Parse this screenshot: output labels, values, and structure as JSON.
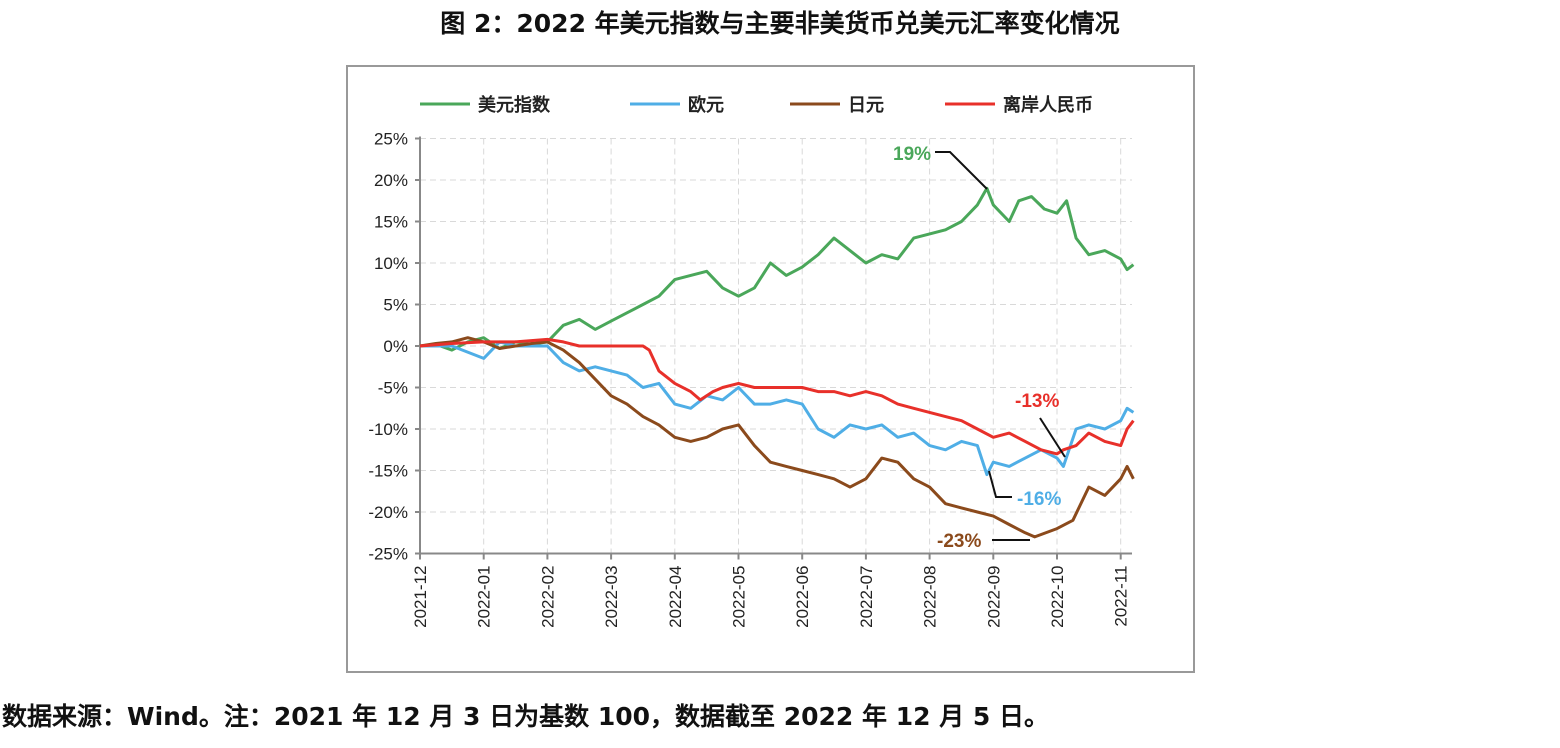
{
  "title": "图 2：2022 年美元指数与主要非美货币兑美元汇率变化情况",
  "note": "数据来源：Wind。注：2021 年 12 月 3 日为基数 100，数据截至 2022 年 12 月 5 日。",
  "chart_data": {
    "type": "line",
    "title": "图 2：2022 年美元指数与主要非美货币兑美元汇率变化情况",
    "xlabel": "",
    "ylabel": "",
    "ylim": [
      -25,
      25
    ],
    "yticks": [
      25,
      20,
      15,
      10,
      5,
      0,
      -5,
      -10,
      -15,
      -20,
      -25
    ],
    "ytick_labels": [
      "25%",
      "20%",
      "15%",
      "10%",
      "5%",
      "0%",
      "-5%",
      "-10%",
      "-15%",
      "-20%",
      "-25%"
    ],
    "xtick_labels": [
      "2021-12",
      "2022-01",
      "2022-02",
      "2022-03",
      "2022-04",
      "2022-05",
      "2022-06",
      "2022-07",
      "2022-08",
      "2022-09",
      "2022-10",
      "2022-11"
    ],
    "x_unit": "months since 2021-12",
    "grid": true,
    "legend": "top",
    "series": [
      {
        "name": "美元指数",
        "color": "#4aa75a",
        "x": [
          0,
          0.25,
          0.5,
          0.75,
          1,
          1.25,
          1.5,
          1.75,
          2,
          2.25,
          2.5,
          2.75,
          3,
          3.25,
          3.5,
          3.75,
          4,
          4.25,
          4.5,
          4.75,
          5,
          5.25,
          5.5,
          5.75,
          6,
          6.25,
          6.5,
          6.75,
          7,
          7.25,
          7.5,
          7.75,
          8,
          8.25,
          8.5,
          8.75,
          8.9,
          9,
          9.25,
          9.4,
          9.6,
          9.8,
          10,
          10.15,
          10.3,
          10.5,
          10.75,
          11,
          11.1,
          11.2
        ],
        "y": [
          0,
          0.2,
          -0.5,
          0.5,
          1,
          -0.3,
          0.5,
          0.2,
          0.5,
          2.5,
          3.2,
          2,
          3,
          4,
          5,
          6,
          8,
          8.5,
          9,
          7,
          6,
          7,
          10,
          8.5,
          9.5,
          11,
          13,
          11.5,
          10,
          11,
          10.5,
          13,
          13.5,
          14,
          15,
          17,
          19,
          17,
          15,
          17.5,
          18,
          16.5,
          16,
          17.5,
          13,
          11,
          11.5,
          10.5,
          9.2,
          9.8
        ]
      },
      {
        "name": "欧元",
        "color": "#4faee6",
        "x": [
          0,
          0.5,
          1,
          1.25,
          1.5,
          2,
          2.25,
          2.5,
          2.75,
          3,
          3.25,
          3.5,
          3.75,
          4,
          4.25,
          4.5,
          4.75,
          5,
          5.25,
          5.5,
          5.75,
          6,
          6.25,
          6.5,
          6.75,
          7,
          7.25,
          7.5,
          7.75,
          8,
          8.25,
          8.5,
          8.75,
          8.9,
          9,
          9.25,
          9.5,
          9.75,
          10,
          10.1,
          10.3,
          10.5,
          10.75,
          11,
          11.1,
          11.2
        ],
        "y": [
          0,
          0,
          -1.5,
          0.5,
          0,
          0,
          -2,
          -3,
          -2.5,
          -3,
          -3.5,
          -5,
          -4.5,
          -7,
          -7.5,
          -6,
          -6.5,
          -5,
          -7,
          -7,
          -6.5,
          -7,
          -10,
          -11,
          -9.5,
          -10,
          -9.5,
          -11,
          -10.5,
          -12,
          -12.5,
          -11.5,
          -12,
          -15.5,
          -14,
          -14.5,
          -13.5,
          -12.5,
          -13.5,
          -14.5,
          -10,
          -9.5,
          -10,
          -9,
          -7.5,
          -8
        ]
      },
      {
        "name": "日元",
        "color": "#8b4a1c",
        "x": [
          0,
          0.25,
          0.5,
          0.75,
          1,
          1.25,
          1.5,
          1.75,
          2,
          2.25,
          2.5,
          2.75,
          3,
          3.25,
          3.5,
          3.75,
          4,
          4.25,
          4.5,
          4.75,
          5,
          5.25,
          5.5,
          5.75,
          6,
          6.25,
          6.5,
          6.75,
          7,
          7.25,
          7.5,
          7.75,
          8,
          8.25,
          8.5,
          8.75,
          9,
          9.25,
          9.5,
          9.65,
          10,
          10.25,
          10.5,
          10.75,
          11,
          11.1,
          11.2
        ],
        "y": [
          0,
          0.3,
          0.5,
          1,
          0.5,
          -0.3,
          0,
          0.3,
          0.5,
          -0.5,
          -2,
          -4,
          -6,
          -7,
          -8.5,
          -9.5,
          -11,
          -11.5,
          -11,
          -10,
          -9.5,
          -12,
          -14,
          -14.5,
          -15,
          -15.5,
          -16,
          -17,
          -16,
          -13.5,
          -14,
          -16,
          -17,
          -19,
          -19.5,
          -20,
          -20.5,
          -21.5,
          -22.5,
          -23,
          -22,
          -21,
          -17,
          -18,
          -16,
          -14.5,
          -16
        ]
      },
      {
        "name": "离岸人民币",
        "color": "#e8302a",
        "x": [
          0,
          0.5,
          1,
          1.5,
          2,
          2.25,
          2.5,
          3,
          3.5,
          3.6,
          3.75,
          4,
          4.25,
          4.4,
          4.6,
          4.75,
          5,
          5.25,
          5.5,
          5.75,
          6,
          6.25,
          6.5,
          6.75,
          7,
          7.25,
          7.5,
          7.75,
          8,
          8.25,
          8.5,
          8.75,
          9,
          9.25,
          9.5,
          9.75,
          10,
          10.1,
          10.3,
          10.5,
          10.75,
          11,
          11.1,
          11.2
        ],
        "y": [
          0,
          0.3,
          0.5,
          0.5,
          0.8,
          0.5,
          0,
          0,
          0,
          -0.5,
          -3,
          -4.5,
          -5.5,
          -6.5,
          -5.5,
          -5,
          -4.5,
          -5,
          -5,
          -5,
          -5,
          -5.5,
          -5.5,
          -6,
          -5.5,
          -6,
          -7,
          -7.5,
          -8,
          -8.5,
          -9,
          -10,
          -11,
          -10.5,
          -11.5,
          -12.5,
          -13,
          -12.5,
          -12,
          -10.5,
          -11.5,
          -12,
          -10,
          -9
        ]
      }
    ],
    "annotations": [
      {
        "text": "19%",
        "series": "美元指数",
        "x": 8.9,
        "y": 19,
        "color": "#4aa75a"
      },
      {
        "text": "-13%",
        "series": "离岸人民币",
        "x": 10,
        "y": -13,
        "color": "#e8302a"
      },
      {
        "text": "-16%",
        "series": "欧元",
        "x": 8.9,
        "y": -15.5,
        "color": "#4faee6"
      },
      {
        "text": "-23%",
        "series": "日元",
        "x": 9.65,
        "y": -23,
        "color": "#8b4a1c"
      }
    ]
  }
}
